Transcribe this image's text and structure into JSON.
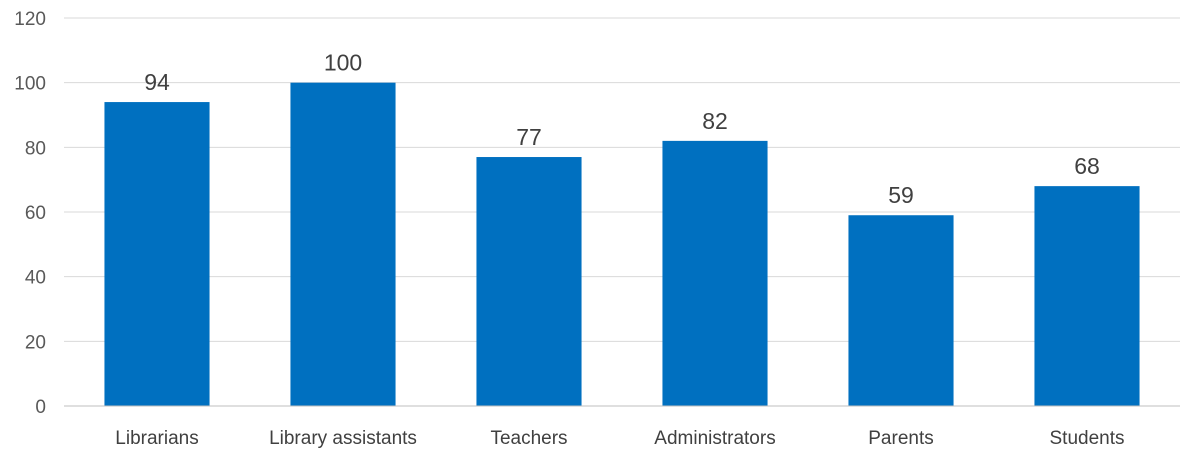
{
  "chart_data": {
    "type": "bar",
    "title": "",
    "xlabel": "",
    "ylabel": "",
    "categories": [
      "Librarians",
      "Library assistants",
      "Teachers",
      "Administrators",
      "Parents",
      "Students"
    ],
    "values": [
      94,
      100,
      77,
      82,
      59,
      68
    ],
    "data_labels": [
      "94",
      "100",
      "77",
      "82",
      "59",
      "68"
    ],
    "ylim": [
      0,
      120
    ],
    "yticks": [
      0,
      20,
      40,
      60,
      80,
      100,
      120
    ],
    "ytick_labels": [
      "0",
      "20",
      "40",
      "60",
      "80",
      "100",
      "120"
    ],
    "grid": true,
    "legend": "none",
    "colors": {
      "bar": "#0070C0",
      "grid": "#D9D9D9",
      "axis": "#BFBFBF"
    }
  }
}
